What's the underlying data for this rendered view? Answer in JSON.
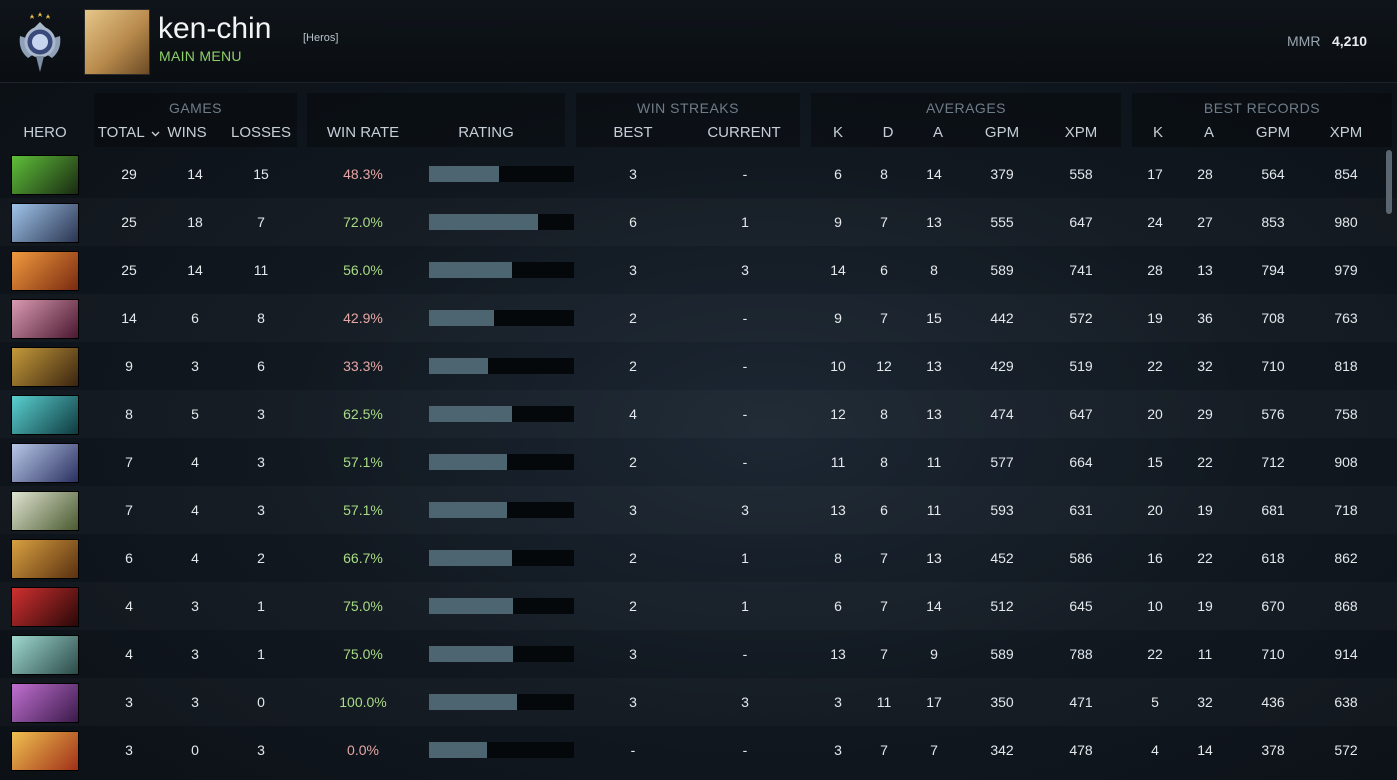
{
  "header": {
    "username": "ken-chin",
    "tag": "[Heros]",
    "subtitle": "MAIN MENU",
    "mmr_label": "MMR",
    "mmr_value": "4,210"
  },
  "groups": {
    "games": "GAMES",
    "win_streaks": "WIN STREAKS",
    "averages": "AVERAGES",
    "best_records": "BEST RECORDS"
  },
  "columns": {
    "hero": "HERO",
    "total": "TOTAL",
    "wins": "WINS",
    "losses": "LOSSES",
    "win_rate": "WIN RATE",
    "rating": "RATING",
    "best": "BEST",
    "current": "CURRENT",
    "avg_k": "K",
    "avg_d": "D",
    "avg_a": "A",
    "avg_gpm": "GPM",
    "avg_xpm": "XPM",
    "rec_k": "K",
    "rec_a": "A",
    "rec_gpm": "GPM",
    "rec_xpm": "XPM"
  },
  "sort_icon": "chevron-down-icon",
  "colors": {
    "accent_green": "#8ed16a",
    "winrate_good": "#a9dc86",
    "winrate_bad": "#e6a7a4",
    "rating_bar": "#4d6471"
  },
  "rows": [
    {
      "total": "29",
      "wins": "14",
      "losses": "15",
      "win_rate": "48.3%",
      "rating": 0.48,
      "best": "3",
      "current": "-",
      "k": "6",
      "d": "8",
      "a": "14",
      "gpm": "379",
      "xpm": "558",
      "rk": "17",
      "ra": "28",
      "rgpm": "564",
      "rxpm": "854"
    },
    {
      "total": "25",
      "wins": "18",
      "losses": "7",
      "win_rate": "72.0%",
      "rating": 0.75,
      "best": "6",
      "current": "1",
      "k": "9",
      "d": "7",
      "a": "13",
      "gpm": "555",
      "xpm": "647",
      "rk": "24",
      "ra": "27",
      "rgpm": "853",
      "rxpm": "980"
    },
    {
      "total": "25",
      "wins": "14",
      "losses": "11",
      "win_rate": "56.0%",
      "rating": 0.57,
      "best": "3",
      "current": "3",
      "k": "14",
      "d": "6",
      "a": "8",
      "gpm": "589",
      "xpm": "741",
      "rk": "28",
      "ra": "13",
      "rgpm": "794",
      "rxpm": "979"
    },
    {
      "total": "14",
      "wins": "6",
      "losses": "8",
      "win_rate": "42.9%",
      "rating": 0.45,
      "best": "2",
      "current": "-",
      "k": "9",
      "d": "7",
      "a": "15",
      "gpm": "442",
      "xpm": "572",
      "rk": "19",
      "ra": "36",
      "rgpm": "708",
      "rxpm": "763"
    },
    {
      "total": "9",
      "wins": "3",
      "losses": "6",
      "win_rate": "33.3%",
      "rating": 0.41,
      "best": "2",
      "current": "-",
      "k": "10",
      "d": "12",
      "a": "13",
      "gpm": "429",
      "xpm": "519",
      "rk": "22",
      "ra": "32",
      "rgpm": "710",
      "rxpm": "818"
    },
    {
      "total": "8",
      "wins": "5",
      "losses": "3",
      "win_rate": "62.5%",
      "rating": 0.57,
      "best": "4",
      "current": "-",
      "k": "12",
      "d": "8",
      "a": "13",
      "gpm": "474",
      "xpm": "647",
      "rk": "20",
      "ra": "29",
      "rgpm": "576",
      "rxpm": "758"
    },
    {
      "total": "7",
      "wins": "4",
      "losses": "3",
      "win_rate": "57.1%",
      "rating": 0.54,
      "best": "2",
      "current": "-",
      "k": "11",
      "d": "8",
      "a": "11",
      "gpm": "577",
      "xpm": "664",
      "rk": "15",
      "ra": "22",
      "rgpm": "712",
      "rxpm": "908"
    },
    {
      "total": "7",
      "wins": "4",
      "losses": "3",
      "win_rate": "57.1%",
      "rating": 0.54,
      "best": "3",
      "current": "3",
      "k": "13",
      "d": "6",
      "a": "11",
      "gpm": "593",
      "xpm": "631",
      "rk": "20",
      "ra": "19",
      "rgpm": "681",
      "rxpm": "718"
    },
    {
      "total": "6",
      "wins": "4",
      "losses": "2",
      "win_rate": "66.7%",
      "rating": 0.57,
      "best": "2",
      "current": "1",
      "k": "8",
      "d": "7",
      "a": "13",
      "gpm": "452",
      "xpm": "586",
      "rk": "16",
      "ra": "22",
      "rgpm": "618",
      "rxpm": "862"
    },
    {
      "total": "4",
      "wins": "3",
      "losses": "1",
      "win_rate": "75.0%",
      "rating": 0.58,
      "best": "2",
      "current": "1",
      "k": "6",
      "d": "7",
      "a": "14",
      "gpm": "512",
      "xpm": "645",
      "rk": "10",
      "ra": "19",
      "rgpm": "670",
      "rxpm": "868"
    },
    {
      "total": "4",
      "wins": "3",
      "losses": "1",
      "win_rate": "75.0%",
      "rating": 0.58,
      "best": "3",
      "current": "-",
      "k": "13",
      "d": "7",
      "a": "9",
      "gpm": "589",
      "xpm": "788",
      "rk": "22",
      "ra": "11",
      "rgpm": "710",
      "rxpm": "914"
    },
    {
      "total": "3",
      "wins": "3",
      "losses": "0",
      "win_rate": "100.0%",
      "rating": 0.61,
      "best": "3",
      "current": "3",
      "k": "3",
      "d": "11",
      "a": "17",
      "gpm": "350",
      "xpm": "471",
      "rk": "5",
      "ra": "32",
      "rgpm": "436",
      "rxpm": "638"
    },
    {
      "total": "3",
      "wins": "0",
      "losses": "3",
      "win_rate": "0.0%",
      "rating": 0.4,
      "best": "-",
      "current": "-",
      "k": "3",
      "d": "7",
      "a": "7",
      "gpm": "342",
      "xpm": "478",
      "rk": "4",
      "ra": "14",
      "rgpm": "378",
      "rxpm": "572"
    }
  ]
}
